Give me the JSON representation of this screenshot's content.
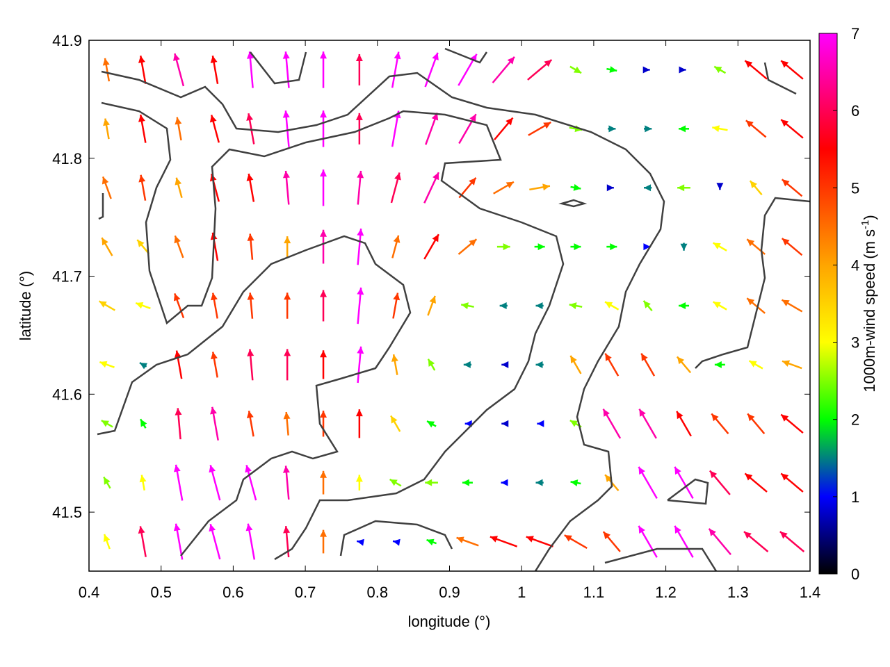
{
  "chart_data": {
    "type": "quiver",
    "xlabel": "longitude (°)",
    "ylabel": "latitude (°)",
    "colorbar_label": {
      "text": "1000m-wind speed (m s",
      "superscript": "-1",
      "suffix": ")"
    },
    "xlim": [
      0.4,
      1.4
    ],
    "ylim": [
      41.45,
      41.9
    ],
    "xticks": [
      0.4,
      0.5,
      0.6,
      0.7,
      0.8,
      0.9,
      1.0,
      1.1,
      1.2,
      1.3,
      1.4
    ],
    "yticks": [
      41.5,
      41.6,
      41.7,
      41.8,
      41.9
    ],
    "clim": [
      0,
      7
    ],
    "cticks": [
      0,
      1,
      2,
      3,
      4,
      5,
      6,
      7
    ],
    "colormap": [
      {
        "value": 0,
        "color": "#000000"
      },
      {
        "value": 1,
        "color": "#0000ff"
      },
      {
        "value": 1.5,
        "color": "#008080"
      },
      {
        "value": 2,
        "color": "#00ff00"
      },
      {
        "value": 3,
        "color": "#ffff00"
      },
      {
        "value": 4,
        "color": "#ffa500"
      },
      {
        "value": 5.5,
        "color": "#ff0000"
      },
      {
        "value": 7,
        "color": "#ff00ff"
      }
    ],
    "lon": [
      0.425,
      0.475,
      0.525,
      0.575,
      0.625,
      0.675,
      0.725,
      0.775,
      0.825,
      0.875,
      0.925,
      0.975,
      1.025,
      1.075,
      1.125,
      1.175,
      1.225,
      1.275,
      1.325,
      1.375
    ],
    "lat": [
      41.875,
      41.825,
      41.775,
      41.725,
      41.675,
      41.625,
      41.575,
      41.525,
      41.475
    ],
    "speed": [
      [
        4.5,
        5.5,
        6.5,
        5.5,
        7,
        7,
        7,
        6,
        7,
        7,
        7,
        6.5,
        6,
        2.5,
        2,
        0.8,
        0.8,
        2.5,
        5.5,
        5.5
      ],
      [
        4,
        5.5,
        4.5,
        5.5,
        6,
        7,
        7,
        6,
        7,
        6.5,
        6.5,
        5.5,
        5,
        2.5,
        1.5,
        1.5,
        2,
        3,
        5,
        5.5
      ],
      [
        4.5,
        5,
        4,
        5.5,
        5.5,
        6.5,
        7,
        6.5,
        6,
        6.5,
        5,
        4.5,
        4,
        2,
        0.8,
        1.5,
        2.5,
        0.8,
        3.5,
        5
      ],
      [
        4,
        3.5,
        4.5,
        5.5,
        5,
        4,
        6.5,
        7,
        4.5,
        5.5,
        4.5,
        2.5,
        2,
        2,
        2,
        1,
        1.5,
        3,
        4.5,
        5
      ],
      [
        3.5,
        3,
        5,
        5,
        5,
        5,
        6,
        7,
        5,
        4,
        2.5,
        1.5,
        1.5,
        2.5,
        3,
        2.5,
        2,
        3,
        4.5,
        4.5
      ],
      [
        3,
        1.5,
        5.5,
        5,
        6,
        6,
        5.5,
        7,
        4,
        2.5,
        1.5,
        0.8,
        1.5,
        4,
        5,
        5,
        4,
        2,
        3,
        4
      ],
      [
        2.5,
        2,
        6,
        6.5,
        5,
        4.5,
        5,
        5.5,
        3.5,
        2,
        1,
        0.8,
        1,
        2.5,
        6.5,
        6.5,
        5.5,
        5,
        5,
        5.5
      ],
      [
        2.5,
        3,
        7,
        7,
        7,
        6.5,
        4.5,
        3,
        2.5,
        2.5,
        2,
        1,
        1.5,
        2,
        4,
        7,
        7,
        6,
        5.5,
        5.5
      ],
      [
        3,
        6,
        7,
        7,
        7,
        6,
        4.5,
        1,
        1,
        2,
        4.5,
        5.5,
        5.5,
        5,
        5,
        7,
        7,
        6.5,
        6,
        6
      ]
    ],
    "direction": [
      [
        -10,
        -10,
        -15,
        -10,
        -5,
        -5,
        0,
        0,
        10,
        20,
        30,
        40,
        50,
        120,
        100,
        90,
        90,
        -60,
        -50,
        -50
      ],
      [
        -10,
        -10,
        -10,
        -15,
        -10,
        -5,
        0,
        0,
        10,
        20,
        30,
        40,
        60,
        100,
        90,
        90,
        -90,
        -80,
        -50,
        -50
      ],
      [
        -20,
        -10,
        -15,
        -15,
        -10,
        -5,
        0,
        5,
        15,
        25,
        40,
        60,
        80,
        100,
        90,
        -90,
        -90,
        180,
        -40,
        -50
      ],
      [
        -30,
        -40,
        -20,
        -10,
        -5,
        0,
        0,
        5,
        15,
        30,
        50,
        90,
        90,
        90,
        90,
        90,
        180,
        -60,
        -50,
        -50
      ],
      [
        -60,
        -70,
        -20,
        -10,
        -5,
        0,
        0,
        5,
        10,
        20,
        -80,
        -90,
        -90,
        -80,
        -60,
        -40,
        -90,
        -60,
        -50,
        -60
      ],
      [
        -70,
        -60,
        -10,
        -10,
        -5,
        0,
        0,
        5,
        -10,
        -30,
        -90,
        -90,
        -90,
        -30,
        -30,
        -30,
        -40,
        -90,
        -60,
        -70
      ],
      [
        -60,
        -30,
        -5,
        -10,
        -10,
        -5,
        0,
        0,
        -30,
        -60,
        -90,
        -90,
        -90,
        -60,
        -30,
        -30,
        -30,
        -40,
        -40,
        -50
      ],
      [
        -30,
        -10,
        -10,
        -15,
        -15,
        -5,
        0,
        0,
        -60,
        -90,
        -90,
        -90,
        -90,
        -80,
        -40,
        -30,
        -30,
        -40,
        -50,
        -50
      ],
      [
        -20,
        -10,
        -10,
        -15,
        -10,
        -5,
        0,
        -80,
        -80,
        -70,
        -70,
        -70,
        -70,
        -60,
        -40,
        -30,
        -30,
        -40,
        -50,
        -50
      ]
    ]
  }
}
